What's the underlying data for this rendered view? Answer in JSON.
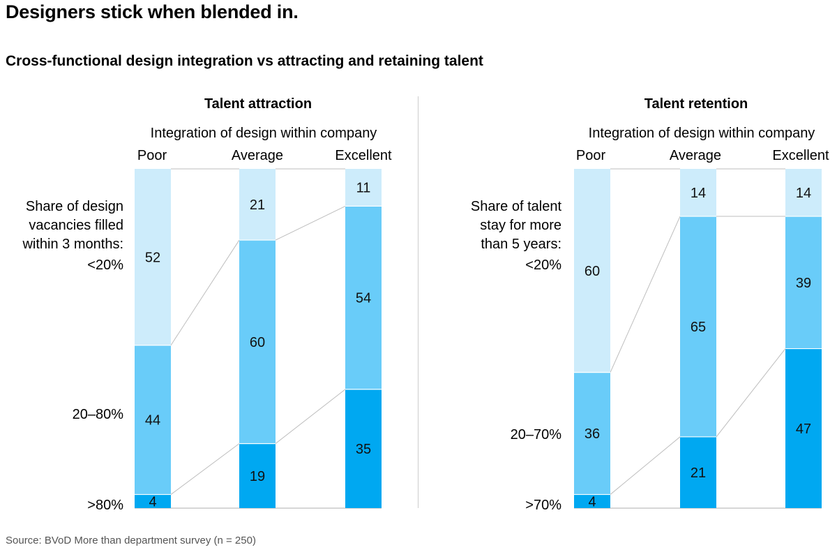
{
  "title": "Designers stick when blended in.",
  "subtitle": "Cross-functional design integration vs attracting and retaining talent",
  "source": "Source: BVoD More than department survey (n = 250)",
  "colors": {
    "light": "#cdecfb",
    "mid": "#69ccf9",
    "dark": "#00a8f1",
    "connector": "#bdbdbd",
    "divider": "#cccccc"
  },
  "chart_data": [
    {
      "type": "bar",
      "stacked": true,
      "normalized": true,
      "title": "Talent attraction",
      "xlabel": "Integration of design within company",
      "categories": [
        "Poor",
        "Average",
        "Excellent"
      ],
      "ylabel_lines": [
        "Share of design",
        "vacancies filled",
        "within 3 months:"
      ],
      "series": [
        {
          "name": "<20%",
          "values": [
            52,
            21,
            11
          ]
        },
        {
          "name": "20–80%",
          "values": [
            44,
            60,
            54
          ]
        },
        {
          "name": ">80%",
          "values": [
            4,
            19,
            35
          ]
        }
      ],
      "ylim": [
        0,
        100
      ],
      "grid": false
    },
    {
      "type": "bar",
      "stacked": true,
      "normalized": true,
      "title": "Talent retention",
      "xlabel": "Integration of design within company",
      "categories": [
        "Poor",
        "Average",
        "Excellent"
      ],
      "ylabel_lines": [
        "Share of talent",
        "stay for more",
        "than 5 years:"
      ],
      "series": [
        {
          "name": "<20%",
          "values": [
            60,
            14,
            14
          ]
        },
        {
          "name": "20–70%",
          "values": [
            36,
            65,
            39
          ]
        },
        {
          "name": ">70%",
          "values": [
            4,
            21,
            47
          ]
        }
      ],
      "ylim": [
        0,
        100
      ],
      "grid": false
    }
  ]
}
